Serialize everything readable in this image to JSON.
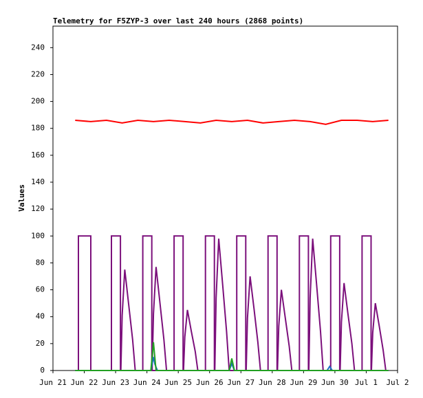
{
  "chart_data": {
    "type": "line",
    "title": "Telemetry for F5ZYP-3 over last 240 hours (2868 points)",
    "ylabel": "Values",
    "xlim": [
      0,
      264
    ],
    "xticks": [
      {
        "value": 0,
        "label": "Jun 21"
      },
      {
        "value": 24,
        "label": "Jun 22"
      },
      {
        "value": 48,
        "label": "Jun 23"
      },
      {
        "value": 72,
        "label": "Jun 24"
      },
      {
        "value": 96,
        "label": "Jun 25"
      },
      {
        "value": 120,
        "label": "Jun 26"
      },
      {
        "value": 144,
        "label": "Jun 27"
      },
      {
        "value": 168,
        "label": "Jun 28"
      },
      {
        "value": 192,
        "label": "Jun 29"
      },
      {
        "value": 216,
        "label": "Jun 30"
      },
      {
        "value": 240,
        "label": "Jul 1"
      },
      {
        "value": 264,
        "label": "Jul 2"
      }
    ],
    "ylim": [
      0,
      256
    ],
    "yticks": [
      0,
      20,
      40,
      60,
      80,
      100,
      120,
      140,
      160,
      180,
      200,
      220,
      240
    ],
    "grid": false,
    "series": [
      {
        "color": "#7b0f7b",
        "x": [
          17,
          19.5,
          19.5,
          29,
          29,
          44.8,
          44.8,
          51.7,
          51.7,
          68.8,
          68.8,
          75.7,
          75.7,
          92.8,
          92.8,
          99.7,
          99.7,
          116.8,
          116.8,
          123.7,
          123.7,
          140.8,
          140.8,
          147.7,
          147.7,
          164.8,
          164.8,
          171.7,
          171.7,
          188.8,
          188.8,
          195.7,
          195.7,
          212.8,
          212.8,
          219.7,
          219.7,
          236.8,
          236.8,
          243.7,
          243.7,
          257
        ],
        "values": [
          0,
          0,
          100,
          100,
          0,
          0,
          100,
          100,
          0,
          0,
          100,
          100,
          0,
          0,
          100,
          100,
          0,
          0,
          100,
          100,
          0,
          0,
          100,
          100,
          0,
          0,
          100,
          100,
          0,
          0,
          100,
          100,
          0,
          0,
          100,
          100,
          0,
          0,
          100,
          100,
          0,
          0
        ]
      },
      {
        "color": "#7b0f7b",
        "x": [
          52,
          53,
          55,
          58,
          61,
          63,
          76,
          77,
          79,
          82,
          85,
          87,
          100,
          101,
          103,
          106,
          109,
          111,
          124,
          125,
          127,
          130,
          133,
          135,
          148,
          149,
          151,
          154,
          157,
          159,
          172,
          173,
          175,
          178,
          181,
          183,
          196,
          197,
          199,
          202,
          205,
          207,
          220,
          221,
          223,
          226,
          229,
          231,
          244,
          245,
          247,
          250,
          253,
          255
        ],
        "values": [
          0,
          41,
          75,
          49,
          23,
          0,
          0,
          42,
          77,
          50,
          23,
          0,
          0,
          25,
          45,
          29,
          14,
          0,
          0,
          54,
          98,
          64,
          29,
          0,
          0,
          39,
          70,
          46,
          21,
          0,
          0,
          33,
          60,
          39,
          18,
          0,
          0,
          54,
          98,
          64,
          29,
          0,
          0,
          36,
          65,
          42,
          20,
          0,
          0,
          28,
          50,
          33,
          15,
          0
        ]
      },
      {
        "color": "#ff0000",
        "x": [
          17,
          29,
          41,
          53,
          65,
          77,
          89,
          101,
          113,
          125,
          137,
          149,
          161,
          173,
          185,
          197,
          209,
          221,
          233,
          245,
          257
        ],
        "values": [
          186,
          185,
          186,
          184,
          186,
          185,
          186,
          185,
          184,
          186,
          185,
          186,
          184,
          185,
          186,
          185,
          183,
          186,
          186,
          185,
          186
        ]
      },
      {
        "color": "#1a6fc4",
        "x": [
          17,
          75,
          77,
          78,
          80,
          135,
          137,
          139,
          210,
          212,
          214,
          257
        ],
        "values": [
          0,
          0,
          10,
          5,
          0,
          0,
          5,
          0,
          0,
          3,
          0,
          0
        ]
      },
      {
        "color": "#22a022",
        "x": [
          17,
          75,
          77,
          79,
          135,
          137,
          139,
          257
        ],
        "values": [
          0,
          0,
          21,
          0,
          0,
          9,
          0,
          0
        ]
      }
    ]
  }
}
